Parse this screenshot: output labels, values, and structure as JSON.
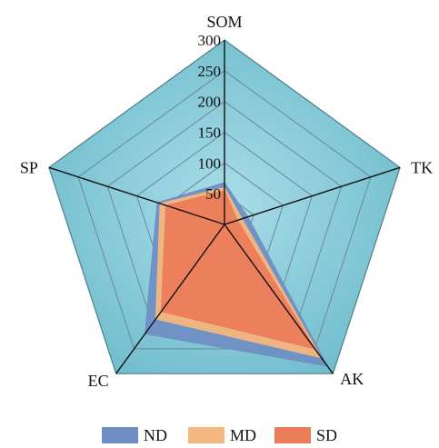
{
  "chart_data": {
    "type": "radar",
    "axes": [
      "SOM",
      "TK",
      "AK",
      "EC",
      "SP"
    ],
    "rmax": 300,
    "rings": 6,
    "ticks": [
      50,
      100,
      150,
      200,
      250,
      300
    ],
    "tick_labels": [
      "50",
      "100",
      "150",
      "200",
      "250",
      "300"
    ],
    "series": [
      {
        "name": "ND",
        "values": [
          68,
          40,
          285,
          220,
          115
        ]
      },
      {
        "name": "MD",
        "values": [
          60,
          30,
          268,
          190,
          110
        ]
      },
      {
        "name": "SD",
        "values": [
          55,
          22,
          250,
          175,
          100
        ]
      }
    ],
    "legend_position": "bottom",
    "grid": true
  },
  "colors": {
    "background_fill": "#86cbd9",
    "grid_line": "#6a8a93",
    "axis_line": "#111111",
    "series": [
      "#6f8fc4",
      "#f4b77f",
      "#ec7d5a"
    ]
  }
}
